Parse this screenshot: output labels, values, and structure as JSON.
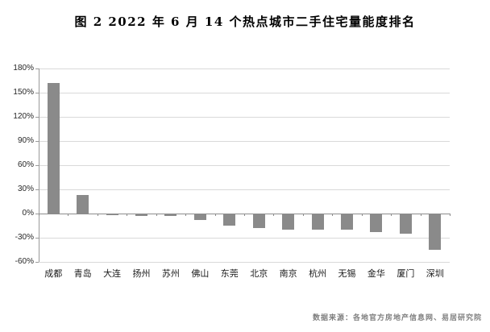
{
  "figure": {
    "source_note": "数据来源：各地官方房地产信息网、易居研究院"
  },
  "chart_data": {
    "type": "bar",
    "title": "图 2  2022 年 6 月 14 个热点城市二手住宅量能度排名",
    "categories": [
      "成都",
      "青岛",
      "大连",
      "扬州",
      "苏州",
      "佛山",
      "东莞",
      "北京",
      "南京",
      "杭州",
      "无锡",
      "金华",
      "厦门",
      "深圳"
    ],
    "values": [
      162,
      23,
      -2,
      -3,
      -3,
      -8,
      -15,
      -18,
      -20,
      -20,
      -20,
      -23,
      -25,
      -45
    ],
    "unit": "%",
    "ylim": [
      -60,
      180
    ],
    "ytick_step": 30,
    "ytick_labels": [
      "180%",
      "150%",
      "120%",
      "90%",
      "60%",
      "30%",
      "0%",
      "-30%",
      "-60%"
    ],
    "grid": true,
    "legend": "none",
    "xlabel": "",
    "ylabel": "",
    "bar_color": "#8a8a8a",
    "gridline_color": "#d9d9d9",
    "axis_color": "#9a9a9a"
  }
}
